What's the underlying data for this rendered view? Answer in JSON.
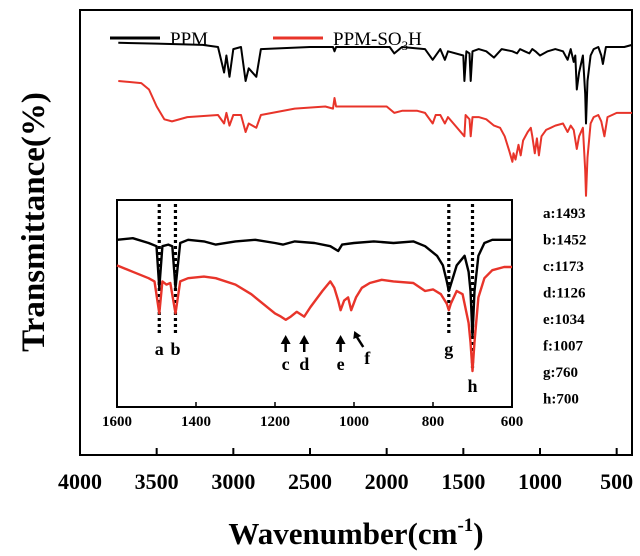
{
  "chart_data": {
    "type": "line",
    "xlabel": "Wavenumber(cm",
    "xlabel_sup": "-1",
    "xlabel_close": ")",
    "ylabel": "Transmittance(%)",
    "x_reversed": true,
    "xlim": [
      4000,
      400
    ],
    "x_ticks": [
      4000,
      3500,
      3000,
      2500,
      2000,
      1500,
      1000,
      500
    ],
    "grid": false,
    "legend": {
      "position": "top-left",
      "entries": [
        {
          "label": "PPM",
          "sub": "",
          "tail": "",
          "color": "#000000"
        },
        {
          "label": "PPM-SO",
          "sub": "3",
          "tail": "H",
          "color": "#e8342a"
        }
      ]
    },
    "series": [
      {
        "name": "PPM",
        "color": "#000000",
        "points": [
          [
            3750,
            97
          ],
          [
            3500,
            96.8
          ],
          [
            3200,
            96.5
          ],
          [
            3100,
            96
          ],
          [
            3060,
            90
          ],
          [
            3045,
            94
          ],
          [
            3025,
            89
          ],
          [
            3000,
            95.5
          ],
          [
            2950,
            96
          ],
          [
            2920,
            88
          ],
          [
            2900,
            91
          ],
          [
            2850,
            89
          ],
          [
            2820,
            95.5
          ],
          [
            2500,
            96
          ],
          [
            2350,
            96
          ],
          [
            2340,
            95
          ],
          [
            2330,
            96
          ],
          [
            1980,
            96
          ],
          [
            1950,
            94.5
          ],
          [
            1900,
            96
          ],
          [
            1750,
            95.5
          ],
          [
            1700,
            93
          ],
          [
            1650,
            95.5
          ],
          [
            1620,
            93
          ],
          [
            1600,
            95
          ],
          [
            1500,
            94
          ],
          [
            1493,
            88
          ],
          [
            1480,
            95
          ],
          [
            1460,
            94.5
          ],
          [
            1452,
            88
          ],
          [
            1440,
            95
          ],
          [
            1400,
            95.5
          ],
          [
            1350,
            95
          ],
          [
            1300,
            93.5
          ],
          [
            1250,
            95.5
          ],
          [
            1180,
            95
          ],
          [
            1150,
            94.5
          ],
          [
            1130,
            95.5
          ],
          [
            1100,
            95
          ],
          [
            1070,
            94.5
          ],
          [
            1050,
            95.5
          ],
          [
            1030,
            95
          ],
          [
            1000,
            94
          ],
          [
            950,
            95
          ],
          [
            900,
            95.5
          ],
          [
            850,
            95
          ],
          [
            820,
            93
          ],
          [
            800,
            95.5
          ],
          [
            780,
            92.5
          ],
          [
            770,
            94
          ],
          [
            760,
            86
          ],
          [
            745,
            90
          ],
          [
            720,
            94
          ],
          [
            705,
            85
          ],
          [
            700,
            78
          ],
          [
            690,
            88
          ],
          [
            670,
            94
          ],
          [
            650,
            95.5
          ],
          [
            620,
            96
          ],
          [
            600,
            94
          ],
          [
            590,
            92
          ],
          [
            570,
            96
          ],
          [
            500,
            96
          ],
          [
            450,
            96
          ],
          [
            400,
            96.5
          ]
        ]
      },
      {
        "name": "PPM-SO3H",
        "color": "#e8342a",
        "points": [
          [
            3750,
            88
          ],
          [
            3600,
            87.5
          ],
          [
            3550,
            86
          ],
          [
            3500,
            82
          ],
          [
            3450,
            79
          ],
          [
            3400,
            78.5
          ],
          [
            3300,
            79.5
          ],
          [
            3100,
            80
          ],
          [
            3060,
            78
          ],
          [
            3045,
            80.5
          ],
          [
            3025,
            77.5
          ],
          [
            3000,
            80
          ],
          [
            2950,
            80
          ],
          [
            2920,
            76
          ],
          [
            2900,
            78
          ],
          [
            2850,
            77
          ],
          [
            2820,
            80
          ],
          [
            2600,
            81.5
          ],
          [
            2400,
            82
          ],
          [
            2350,
            81.5
          ],
          [
            2340,
            84
          ],
          [
            2330,
            82
          ],
          [
            2000,
            82
          ],
          [
            1950,
            80.5
          ],
          [
            1900,
            81
          ],
          [
            1800,
            81
          ],
          [
            1750,
            80.5
          ],
          [
            1700,
            78
          ],
          [
            1680,
            80
          ],
          [
            1650,
            80
          ],
          [
            1620,
            78
          ],
          [
            1600,
            79.5
          ],
          [
            1493,
            75
          ],
          [
            1485,
            80
          ],
          [
            1460,
            79
          ],
          [
            1452,
            75
          ],
          [
            1440,
            79.5
          ],
          [
            1400,
            79.5
          ],
          [
            1350,
            79
          ],
          [
            1300,
            77.5
          ],
          [
            1260,
            77
          ],
          [
            1230,
            75
          ],
          [
            1200,
            71.5
          ],
          [
            1180,
            69
          ],
          [
            1173,
            71
          ],
          [
            1160,
            69.5
          ],
          [
            1140,
            73
          ],
          [
            1126,
            70.5
          ],
          [
            1110,
            74
          ],
          [
            1080,
            76
          ],
          [
            1060,
            77
          ],
          [
            1050,
            75
          ],
          [
            1034,
            71
          ],
          [
            1020,
            74.5
          ],
          [
            1007,
            70.5
          ],
          [
            990,
            75
          ],
          [
            960,
            76.5
          ],
          [
            930,
            77
          ],
          [
            900,
            77.5
          ],
          [
            850,
            78
          ],
          [
            820,
            76
          ],
          [
            800,
            77.5
          ],
          [
            780,
            76.5
          ],
          [
            760,
            72
          ],
          [
            745,
            75
          ],
          [
            720,
            77
          ],
          [
            705,
            67
          ],
          [
            700,
            61
          ],
          [
            690,
            70
          ],
          [
            670,
            78
          ],
          [
            650,
            79.5
          ],
          [
            620,
            80
          ],
          [
            600,
            78.5
          ],
          [
            580,
            75
          ],
          [
            560,
            79.5
          ],
          [
            500,
            80.5
          ],
          [
            450,
            80.5
          ],
          [
            400,
            80.5
          ]
        ]
      }
    ],
    "inset": {
      "xlim": [
        1600,
        600
      ],
      "x_ticks": [
        1600,
        1400,
        1200,
        1000,
        800,
        600
      ],
      "markers": [
        {
          "letter": "a",
          "wavenumber": 1493,
          "style": "dotted"
        },
        {
          "letter": "b",
          "wavenumber": 1452,
          "style": "dotted"
        },
        {
          "letter": "c",
          "wavenumber": 1173,
          "style": "arrow"
        },
        {
          "letter": "d",
          "wavenumber": 1126,
          "style": "arrow"
        },
        {
          "letter": "e",
          "wavenumber": 1034,
          "style": "arrow"
        },
        {
          "letter": "f",
          "wavenumber": 1007,
          "style": "arrow-diag"
        },
        {
          "letter": "g",
          "wavenumber": 760,
          "style": "dotted"
        },
        {
          "letter": "h",
          "wavenumber": 700,
          "style": "dotted"
        }
      ],
      "series": [
        {
          "name": "PPM",
          "color": "#000000",
          "points": [
            [
              1600,
              96
            ],
            [
              1560,
              96.5
            ],
            [
              1520,
              95
            ],
            [
              1500,
              94
            ],
            [
              1493,
              81
            ],
            [
              1485,
              94
            ],
            [
              1470,
              94.5
            ],
            [
              1460,
              94
            ],
            [
              1452,
              81
            ],
            [
              1440,
              95
            ],
            [
              1420,
              96
            ],
            [
              1380,
              95.5
            ],
            [
              1350,
              94.5
            ],
            [
              1300,
              95.5
            ],
            [
              1250,
              96
            ],
            [
              1200,
              95
            ],
            [
              1180,
              94.5
            ],
            [
              1150,
              95.5
            ],
            [
              1100,
              95
            ],
            [
              1060,
              94
            ],
            [
              1040,
              92.5
            ],
            [
              1030,
              94.5
            ],
            [
              1000,
              95
            ],
            [
              950,
              95.5
            ],
            [
              900,
              95
            ],
            [
              850,
              95.5
            ],
            [
              820,
              94
            ],
            [
              790,
              91
            ],
            [
              775,
              88
            ],
            [
              765,
              83
            ],
            [
              760,
              80
            ],
            [
              755,
              82
            ],
            [
              740,
              88
            ],
            [
              720,
              91
            ],
            [
              710,
              86
            ],
            [
              705,
              80
            ],
            [
              700,
              66
            ],
            [
              695,
              80
            ],
            [
              685,
              91
            ],
            [
              670,
              95
            ],
            [
              650,
              96
            ],
            [
              620,
              96
            ],
            [
              600,
              96
            ]
          ]
        },
        {
          "name": "PPM-SO3H",
          "color": "#e8342a",
          "points": [
            [
              1600,
              88
            ],
            [
              1580,
              87
            ],
            [
              1560,
              86
            ],
            [
              1520,
              84
            ],
            [
              1505,
              83
            ],
            [
              1493,
              73
            ],
            [
              1485,
              83
            ],
            [
              1475,
              82
            ],
            [
              1465,
              82.5
            ],
            [
              1452,
              73
            ],
            [
              1440,
              83
            ],
            [
              1420,
              84
            ],
            [
              1380,
              84.5
            ],
            [
              1350,
              84
            ],
            [
              1300,
              82
            ],
            [
              1260,
              79
            ],
            [
              1230,
              76
            ],
            [
              1200,
              73
            ],
            [
              1185,
              72
            ],
            [
              1173,
              71
            ],
            [
              1160,
              72
            ],
            [
              1145,
              73.5
            ],
            [
              1126,
              72
            ],
            [
              1110,
              75
            ],
            [
              1080,
              80
            ],
            [
              1060,
              83
            ],
            [
              1050,
              81
            ],
            [
              1040,
              77
            ],
            [
              1034,
              74
            ],
            [
              1025,
              77
            ],
            [
              1015,
              78
            ],
            [
              1007,
              74
            ],
            [
              995,
              78
            ],
            [
              980,
              81
            ],
            [
              960,
              82.5
            ],
            [
              930,
              83.5
            ],
            [
              900,
              83
            ],
            [
              850,
              82.5
            ],
            [
              820,
              80
            ],
            [
              800,
              80.5
            ],
            [
              780,
              79
            ],
            [
              765,
              76
            ],
            [
              760,
              74
            ],
            [
              755,
              76
            ],
            [
              740,
              80
            ],
            [
              725,
              79
            ],
            [
              710,
              70
            ],
            [
              705,
              64
            ],
            [
              700,
              55
            ],
            [
              695,
              64
            ],
            [
              685,
              78
            ],
            [
              670,
              84
            ],
            [
              650,
              86.5
            ],
            [
              620,
              87.5
            ],
            [
              600,
              87.5
            ]
          ]
        }
      ]
    },
    "annotation_list": [
      "a:1493",
      "b:1452",
      "c:1173",
      "d:1126",
      "e:1034",
      "f:1007",
      "g:760",
      "h:700"
    ]
  }
}
